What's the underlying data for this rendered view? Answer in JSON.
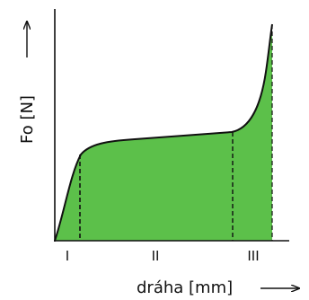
{
  "diagram": {
    "ylabel": "Fo [N]",
    "xlabel": "dráha [mm]",
    "regions": [
      "I",
      "II",
      "III"
    ],
    "colors": {
      "fill": "#5cc04a",
      "stroke": "#111111"
    }
  }
}
